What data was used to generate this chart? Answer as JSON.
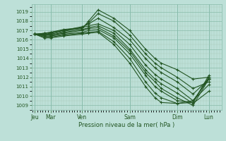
{
  "xlabel": "Pression niveau de la mer( hPa )",
  "background_color": "#bde0d8",
  "grid_color_major": "#88bbaa",
  "grid_color_minor": "#aaccbb",
  "line_color": "#225522",
  "ylim": [
    1008.5,
    1019.8
  ],
  "yticks": [
    1009,
    1010,
    1011,
    1012,
    1013,
    1014,
    1015,
    1016,
    1017,
    1018,
    1019
  ],
  "day_labels": [
    "Jeu",
    "Mar",
    "Ven",
    "Sam",
    "Dim",
    "Lun"
  ],
  "day_positions": [
    0,
    0.5,
    1.5,
    3.0,
    4.5,
    5.5
  ],
  "xlim": [
    -0.1,
    5.9
  ],
  "lines": [
    {
      "x": [
        0.0,
        0.3,
        0.5,
        0.9,
        1.5,
        1.7,
        2.0,
        2.5,
        3.0,
        3.5,
        3.8,
        4.0,
        4.5,
        5.0,
        5.5
      ],
      "y": [
        1016.6,
        1016.7,
        1016.8,
        1017.0,
        1017.2,
        1018.0,
        1019.2,
        1018.3,
        1017.0,
        1015.0,
        1014.0,
        1013.5,
        1012.8,
        1011.8,
        1012.0
      ]
    },
    {
      "x": [
        0.0,
        0.3,
        0.5,
        0.9,
        1.5,
        1.7,
        2.0,
        2.5,
        3.0,
        3.5,
        3.8,
        4.0,
        4.5,
        5.0,
        5.5
      ],
      "y": [
        1016.6,
        1016.7,
        1016.8,
        1017.1,
        1017.3,
        1017.8,
        1018.8,
        1018.0,
        1016.5,
        1014.5,
        1013.5,
        1013.0,
        1012.0,
        1010.8,
        1011.5
      ]
    },
    {
      "x": [
        0.0,
        0.3,
        0.5,
        0.9,
        1.5,
        1.7,
        2.0,
        2.5,
        3.0,
        3.5,
        3.8,
        4.0,
        4.5,
        5.0,
        5.5
      ],
      "y": [
        1016.6,
        1016.6,
        1016.7,
        1017.0,
        1017.4,
        1017.7,
        1018.3,
        1017.3,
        1016.0,
        1014.0,
        1013.0,
        1012.5,
        1011.5,
        1010.2,
        1011.8
      ]
    },
    {
      "x": [
        0.0,
        0.3,
        0.5,
        0.9,
        1.5,
        1.7,
        2.0,
        2.5,
        3.0,
        3.5,
        3.8,
        4.0,
        4.5,
        5.0,
        5.5
      ],
      "y": [
        1016.6,
        1016.6,
        1016.6,
        1016.9,
        1017.3,
        1017.5,
        1017.7,
        1017.0,
        1015.5,
        1013.3,
        1012.3,
        1011.8,
        1010.8,
        1009.5,
        1011.2
      ]
    },
    {
      "x": [
        0.0,
        0.3,
        0.5,
        0.9,
        1.5,
        1.7,
        2.0,
        2.5,
        3.0,
        3.5,
        3.8,
        4.0,
        4.5,
        5.0,
        5.5
      ],
      "y": [
        1016.6,
        1016.5,
        1016.5,
        1016.8,
        1017.1,
        1017.3,
        1017.5,
        1016.7,
        1015.0,
        1012.8,
        1011.8,
        1011.3,
        1010.3,
        1009.2,
        1010.5
      ]
    },
    {
      "x": [
        0.0,
        0.3,
        0.5,
        0.9,
        1.5,
        1.7,
        2.0,
        2.5,
        3.0,
        3.5,
        3.8,
        4.0,
        4.5,
        5.0,
        5.5
      ],
      "y": [
        1016.6,
        1016.5,
        1016.5,
        1016.7,
        1017.0,
        1017.2,
        1017.3,
        1016.4,
        1014.8,
        1012.5,
        1011.5,
        1010.8,
        1009.8,
        1009.0,
        1011.8
      ]
    },
    {
      "x": [
        0.0,
        0.3,
        0.5,
        0.9,
        1.5,
        1.7,
        2.0,
        2.5,
        3.0,
        3.5,
        3.8,
        4.0,
        4.5,
        5.0,
        5.5
      ],
      "y": [
        1016.6,
        1016.4,
        1016.4,
        1016.6,
        1016.8,
        1017.0,
        1017.1,
        1016.2,
        1014.5,
        1012.2,
        1011.0,
        1010.5,
        1009.5,
        1009.3,
        1012.2
      ]
    },
    {
      "x": [
        0.0,
        0.3,
        0.5,
        0.9,
        1.5,
        1.7,
        2.0,
        2.5,
        3.0,
        3.5,
        3.8,
        4.0,
        4.5,
        5.0,
        5.5
      ],
      "y": [
        1016.6,
        1016.3,
        1016.3,
        1016.5,
        1016.7,
        1016.8,
        1016.9,
        1015.8,
        1014.0,
        1011.5,
        1010.3,
        1009.8,
        1009.2,
        1009.3,
        1012.0
      ]
    },
    {
      "x": [
        0.0,
        0.3,
        0.5,
        0.9,
        1.5,
        1.7,
        2.0,
        2.5,
        3.0,
        3.5,
        3.8,
        4.0,
        4.5,
        5.0,
        5.5
      ],
      "y": [
        1016.6,
        1016.2,
        1016.2,
        1016.4,
        1016.6,
        1016.7,
        1016.8,
        1015.5,
        1013.5,
        1011.0,
        1009.8,
        1009.3,
        1009.2,
        1009.5,
        1011.8
      ]
    }
  ]
}
